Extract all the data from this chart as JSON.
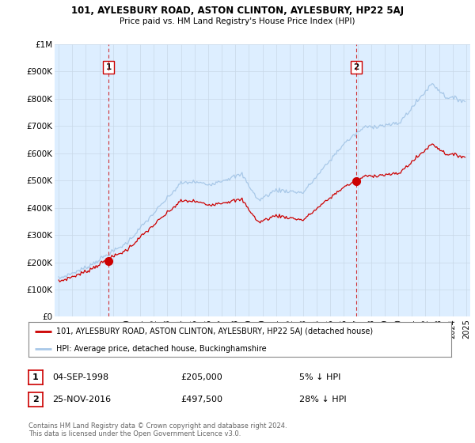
{
  "title": "101, AYLESBURY ROAD, ASTON CLINTON, AYLESBURY, HP22 5AJ",
  "subtitle": "Price paid vs. HM Land Registry's House Price Index (HPI)",
  "xlim_start": 1994.7,
  "xlim_end": 2025.3,
  "ylim": [
    0,
    1000000
  ],
  "yticks": [
    0,
    100000,
    200000,
    300000,
    400000,
    500000,
    600000,
    700000,
    800000,
    900000,
    1000000
  ],
  "ytick_labels": [
    "£0",
    "£100K",
    "£200K",
    "£300K",
    "£400K",
    "£500K",
    "£600K",
    "£700K",
    "£800K",
    "£900K",
    "£1M"
  ],
  "sale1_date": 1998.67,
  "sale1_price": 205000,
  "sale1_label": "1",
  "sale2_date": 2016.9,
  "sale2_price": 497500,
  "sale2_label": "2",
  "hpi_color": "#a8c8e8",
  "sale_color": "#cc0000",
  "dashed_color": "#cc0000",
  "plot_bg_color": "#ddeeff",
  "background_color": "#ffffff",
  "legend_house_label": "101, AYLESBURY ROAD, ASTON CLINTON, AYLESBURY, HP22 5AJ (detached house)",
  "legend_hpi_label": "HPI: Average price, detached house, Buckinghamshire",
  "ann1_date": "04-SEP-1998",
  "ann1_price": "£205,000",
  "ann1_hpi": "5% ↓ HPI",
  "ann2_date": "25-NOV-2016",
  "ann2_price": "£497,500",
  "ann2_hpi": "28% ↓ HPI",
  "footer": "Contains HM Land Registry data © Crown copyright and database right 2024.\nThis data is licensed under the Open Government Licence v3.0."
}
